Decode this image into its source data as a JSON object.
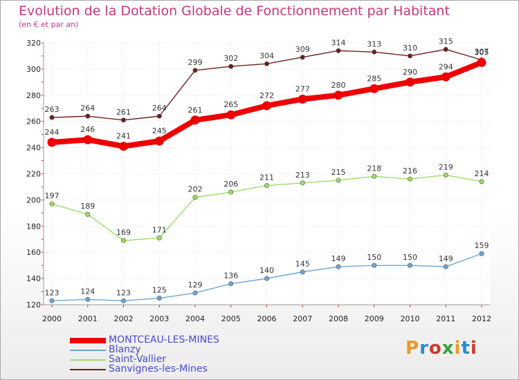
{
  "title": "Evolution de la Dotation Globale de Fonctionnement par Habitant",
  "subtitle": "(en € et par an)",
  "logo": {
    "text": "Proxiti",
    "colors": [
      "#e89a2a",
      "#2a8ad0",
      "#d03a2a",
      "#3aa040",
      "#e89a2a",
      "#2a8ad0",
      "#d03a2a"
    ]
  },
  "chart_data": {
    "type": "line",
    "x": [
      "2000",
      "2001",
      "2002",
      "2003",
      "2004",
      "2005",
      "2006",
      "2007",
      "2008",
      "2009",
      "2010",
      "2011",
      "2012"
    ],
    "ylim": [
      120,
      320
    ],
    "yticks": [
      120,
      140,
      160,
      180,
      200,
      220,
      240,
      260,
      280,
      300,
      320
    ],
    "legend_position": "bottom-left",
    "series": [
      {
        "name": "Sanvignes-les-Mines",
        "color": "#6e1e1e",
        "values": [
          263,
          264,
          261,
          264,
          299,
          302,
          304,
          309,
          314,
          313,
          310,
          315,
          307
        ]
      },
      {
        "name": "Saint-Vallier",
        "color": "#99dd66",
        "values": [
          197,
          189,
          169,
          171,
          202,
          206,
          211,
          213,
          215,
          218,
          216,
          219,
          214
        ]
      },
      {
        "name": "Blanzy",
        "color": "#6aa6d6",
        "values": [
          123,
          124,
          123,
          125,
          129,
          136,
          140,
          145,
          149,
          150,
          150,
          149,
          159
        ]
      },
      {
        "name": "MONTCEAU-LES-MINES",
        "color": "#ee0000",
        "values": [
          244,
          246,
          241,
          245,
          261,
          265,
          272,
          277,
          280,
          285,
          290,
          294,
          305
        ]
      }
    ]
  }
}
